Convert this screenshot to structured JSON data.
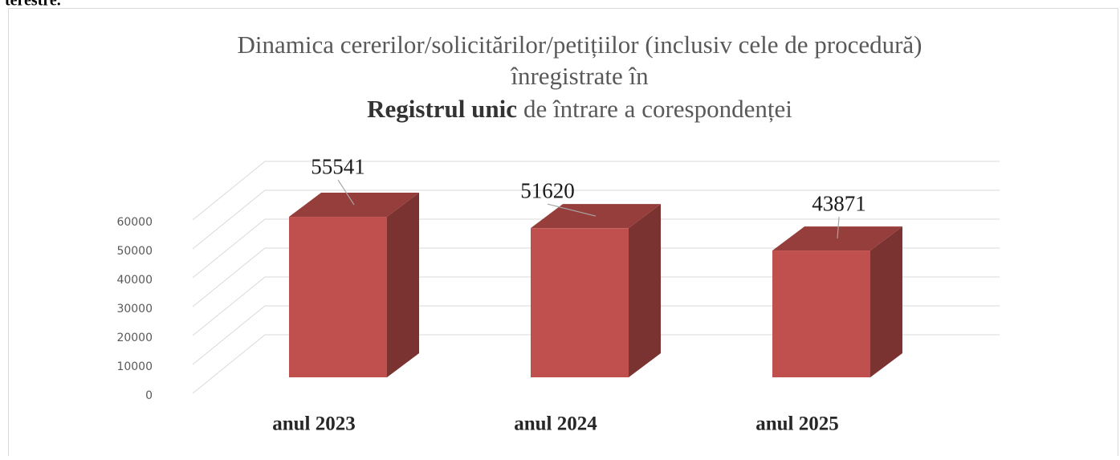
{
  "header_text": "terestre.",
  "chart_data": {
    "type": "bar3d",
    "title": {
      "lines": [
        "Dinamica cererilor/solicitărilor/petițiilor (inclusiv cele de procedură)",
        "înregistrate în"
      ],
      "bold": "Registrul unic",
      "rest": "de întrare a corespondenței"
    },
    "categories": [
      "anul 2023",
      "anul 2024",
      "anul 2025"
    ],
    "values": [
      55541,
      51620,
      43871
    ],
    "color": "#c0504d",
    "ylim": [
      0,
      60000
    ],
    "yticks": [
      0,
      10000,
      20000,
      30000,
      40000,
      50000,
      60000
    ],
    "grid": true
  }
}
